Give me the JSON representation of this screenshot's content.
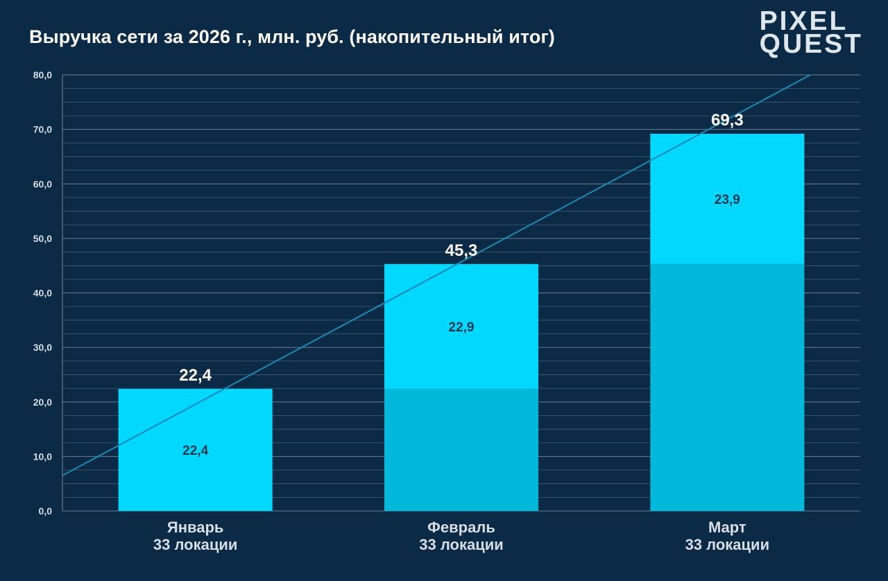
{
  "title": "Выручка сети за 2026 г., млн. руб. (накопительный итог)",
  "logo": {
    "line1": "PIXEL",
    "line2": "QUEST"
  },
  "colors": {
    "background": "#0b2a45",
    "bar_new": "#00d8ff",
    "bar_prev": "#00b8d9",
    "grid": "#6f8aa1",
    "trend": "#1e88b5",
    "text": "#ffffff",
    "axis_label": "#d7dee5"
  },
  "chart_data": {
    "type": "bar",
    "stacked": true,
    "categories": [
      "Январь",
      "Февраль",
      "Март"
    ],
    "category_sublabels": [
      "33 локации",
      "33 локации",
      "33 локации"
    ],
    "series": [
      {
        "values": [
          0,
          22.4,
          45.3
        ],
        "color": "#00b8d9"
      },
      {
        "values": [
          22.4,
          22.9,
          23.9
        ],
        "color": "#00d8ff"
      }
    ],
    "totals": [
      "22,4",
      "45,3",
      "69,3"
    ],
    "segment_labels": [
      "22,4",
      "22,9",
      "23,9"
    ],
    "ylim": [
      0,
      80
    ],
    "yticks": [
      "0,0",
      "10,0",
      "20,0",
      "30,0",
      "40,0",
      "50,0",
      "60,0",
      "70,0",
      "80,0"
    ],
    "ytick_values": [
      0,
      10,
      20,
      30,
      40,
      50,
      60,
      70,
      80
    ],
    "minor_grid_step": 2.5,
    "trendline": {
      "y_start": 6.5,
      "y_end": 80
    },
    "grid": true,
    "legend": "none"
  }
}
